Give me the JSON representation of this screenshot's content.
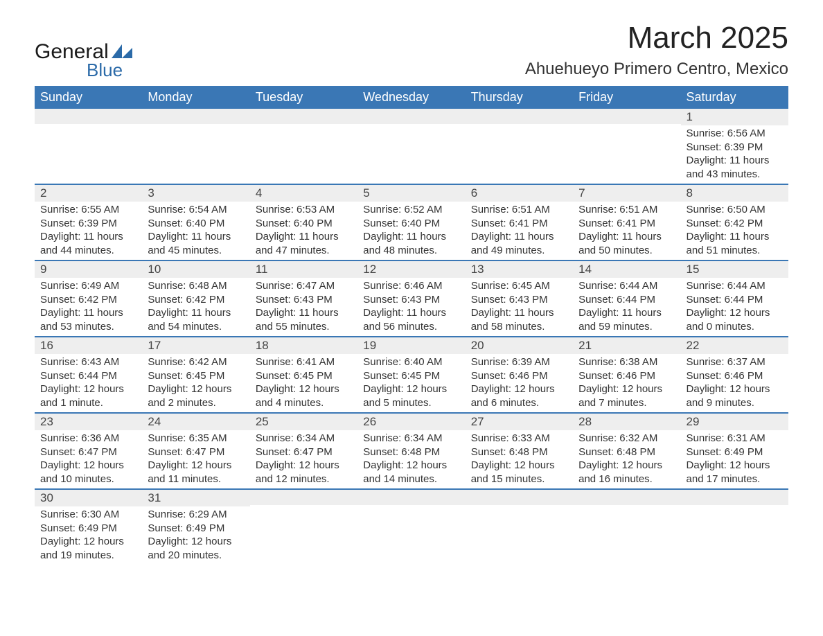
{
  "logo": {
    "text_general": "General",
    "text_blue": "Blue",
    "shape_color": "#2b6aa8"
  },
  "title": "March 2025",
  "location": "Ahuehueyo Primero Centro, Mexico",
  "colors": {
    "header_bg": "#3a77b5",
    "row_divider": "#3a77b5",
    "daynum_bg": "#eeeeee"
  },
  "weekdays": [
    "Sunday",
    "Monday",
    "Tuesday",
    "Wednesday",
    "Thursday",
    "Friday",
    "Saturday"
  ],
  "weeks": [
    [
      null,
      null,
      null,
      null,
      null,
      null,
      {
        "day": "1",
        "sunrise": "Sunrise: 6:56 AM",
        "sunset": "Sunset: 6:39 PM",
        "daylight": "Daylight: 11 hours and 43 minutes."
      }
    ],
    [
      {
        "day": "2",
        "sunrise": "Sunrise: 6:55 AM",
        "sunset": "Sunset: 6:39 PM",
        "daylight": "Daylight: 11 hours and 44 minutes."
      },
      {
        "day": "3",
        "sunrise": "Sunrise: 6:54 AM",
        "sunset": "Sunset: 6:40 PM",
        "daylight": "Daylight: 11 hours and 45 minutes."
      },
      {
        "day": "4",
        "sunrise": "Sunrise: 6:53 AM",
        "sunset": "Sunset: 6:40 PM",
        "daylight": "Daylight: 11 hours and 47 minutes."
      },
      {
        "day": "5",
        "sunrise": "Sunrise: 6:52 AM",
        "sunset": "Sunset: 6:40 PM",
        "daylight": "Daylight: 11 hours and 48 minutes."
      },
      {
        "day": "6",
        "sunrise": "Sunrise: 6:51 AM",
        "sunset": "Sunset: 6:41 PM",
        "daylight": "Daylight: 11 hours and 49 minutes."
      },
      {
        "day": "7",
        "sunrise": "Sunrise: 6:51 AM",
        "sunset": "Sunset: 6:41 PM",
        "daylight": "Daylight: 11 hours and 50 minutes."
      },
      {
        "day": "8",
        "sunrise": "Sunrise: 6:50 AM",
        "sunset": "Sunset: 6:42 PM",
        "daylight": "Daylight: 11 hours and 51 minutes."
      }
    ],
    [
      {
        "day": "9",
        "sunrise": "Sunrise: 6:49 AM",
        "sunset": "Sunset: 6:42 PM",
        "daylight": "Daylight: 11 hours and 53 minutes."
      },
      {
        "day": "10",
        "sunrise": "Sunrise: 6:48 AM",
        "sunset": "Sunset: 6:42 PM",
        "daylight": "Daylight: 11 hours and 54 minutes."
      },
      {
        "day": "11",
        "sunrise": "Sunrise: 6:47 AM",
        "sunset": "Sunset: 6:43 PM",
        "daylight": "Daylight: 11 hours and 55 minutes."
      },
      {
        "day": "12",
        "sunrise": "Sunrise: 6:46 AM",
        "sunset": "Sunset: 6:43 PM",
        "daylight": "Daylight: 11 hours and 56 minutes."
      },
      {
        "day": "13",
        "sunrise": "Sunrise: 6:45 AM",
        "sunset": "Sunset: 6:43 PM",
        "daylight": "Daylight: 11 hours and 58 minutes."
      },
      {
        "day": "14",
        "sunrise": "Sunrise: 6:44 AM",
        "sunset": "Sunset: 6:44 PM",
        "daylight": "Daylight: 11 hours and 59 minutes."
      },
      {
        "day": "15",
        "sunrise": "Sunrise: 6:44 AM",
        "sunset": "Sunset: 6:44 PM",
        "daylight": "Daylight: 12 hours and 0 minutes."
      }
    ],
    [
      {
        "day": "16",
        "sunrise": "Sunrise: 6:43 AM",
        "sunset": "Sunset: 6:44 PM",
        "daylight": "Daylight: 12 hours and 1 minute."
      },
      {
        "day": "17",
        "sunrise": "Sunrise: 6:42 AM",
        "sunset": "Sunset: 6:45 PM",
        "daylight": "Daylight: 12 hours and 2 minutes."
      },
      {
        "day": "18",
        "sunrise": "Sunrise: 6:41 AM",
        "sunset": "Sunset: 6:45 PM",
        "daylight": "Daylight: 12 hours and 4 minutes."
      },
      {
        "day": "19",
        "sunrise": "Sunrise: 6:40 AM",
        "sunset": "Sunset: 6:45 PM",
        "daylight": "Daylight: 12 hours and 5 minutes."
      },
      {
        "day": "20",
        "sunrise": "Sunrise: 6:39 AM",
        "sunset": "Sunset: 6:46 PM",
        "daylight": "Daylight: 12 hours and 6 minutes."
      },
      {
        "day": "21",
        "sunrise": "Sunrise: 6:38 AM",
        "sunset": "Sunset: 6:46 PM",
        "daylight": "Daylight: 12 hours and 7 minutes."
      },
      {
        "day": "22",
        "sunrise": "Sunrise: 6:37 AM",
        "sunset": "Sunset: 6:46 PM",
        "daylight": "Daylight: 12 hours and 9 minutes."
      }
    ],
    [
      {
        "day": "23",
        "sunrise": "Sunrise: 6:36 AM",
        "sunset": "Sunset: 6:47 PM",
        "daylight": "Daylight: 12 hours and 10 minutes."
      },
      {
        "day": "24",
        "sunrise": "Sunrise: 6:35 AM",
        "sunset": "Sunset: 6:47 PM",
        "daylight": "Daylight: 12 hours and 11 minutes."
      },
      {
        "day": "25",
        "sunrise": "Sunrise: 6:34 AM",
        "sunset": "Sunset: 6:47 PM",
        "daylight": "Daylight: 12 hours and 12 minutes."
      },
      {
        "day": "26",
        "sunrise": "Sunrise: 6:34 AM",
        "sunset": "Sunset: 6:48 PM",
        "daylight": "Daylight: 12 hours and 14 minutes."
      },
      {
        "day": "27",
        "sunrise": "Sunrise: 6:33 AM",
        "sunset": "Sunset: 6:48 PM",
        "daylight": "Daylight: 12 hours and 15 minutes."
      },
      {
        "day": "28",
        "sunrise": "Sunrise: 6:32 AM",
        "sunset": "Sunset: 6:48 PM",
        "daylight": "Daylight: 12 hours and 16 minutes."
      },
      {
        "day": "29",
        "sunrise": "Sunrise: 6:31 AM",
        "sunset": "Sunset: 6:49 PM",
        "daylight": "Daylight: 12 hours and 17 minutes."
      }
    ],
    [
      {
        "day": "30",
        "sunrise": "Sunrise: 6:30 AM",
        "sunset": "Sunset: 6:49 PM",
        "daylight": "Daylight: 12 hours and 19 minutes."
      },
      {
        "day": "31",
        "sunrise": "Sunrise: 6:29 AM",
        "sunset": "Sunset: 6:49 PM",
        "daylight": "Daylight: 12 hours and 20 minutes."
      },
      null,
      null,
      null,
      null,
      null
    ]
  ]
}
